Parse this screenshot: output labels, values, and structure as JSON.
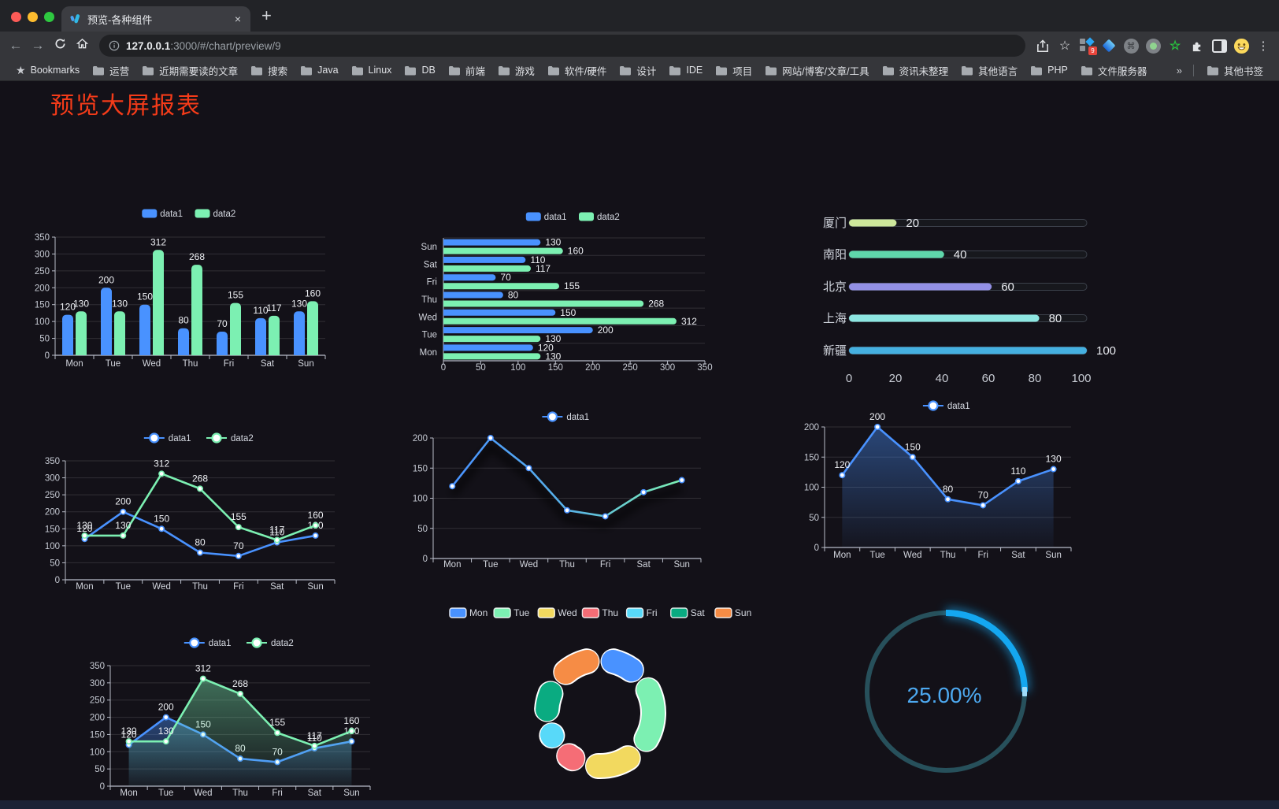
{
  "browser": {
    "tab": {
      "title": "预览-各种组件",
      "close_glyph": "×",
      "new_tab_glyph": "+",
      "favicon": "v-logo-icon"
    },
    "address": {
      "host": "127.0.0.1",
      "path": ":3000/#/chart/preview/9",
      "info_icon": "info-icon"
    },
    "toolbar_icons": [
      "back-arrow",
      "forward-arrow",
      "reload",
      "home",
      "share",
      "star",
      "extensions",
      "side-panel",
      "avatar",
      "menu"
    ],
    "extension_badge": "9",
    "bookmarks_bar": {
      "bookmarks_label": "Bookmarks",
      "folders": [
        "运营",
        "近期需要读的文章",
        "搜索",
        "Java",
        "Linux",
        "DB",
        "前端",
        "游戏",
        "软件/硬件",
        "设计",
        "IDE",
        "项目",
        "网站/博客/文章/工具",
        "资讯未整理",
        "其他语言",
        "PHP",
        "文件服务器"
      ],
      "overflow_glyph": "»",
      "other_bookmarks": "其他书签"
    }
  },
  "page": {
    "title": "预览大屏报表",
    "title_color": "#f43b19"
  },
  "chart_data": [
    {
      "id": "bar-vertical",
      "type": "bar",
      "categories": [
        "Mon",
        "Tue",
        "Wed",
        "Thu",
        "Fri",
        "Sat",
        "Sun"
      ],
      "series": [
        {
          "name": "data1",
          "color": "#4992ff",
          "values": [
            120,
            200,
            150,
            80,
            70,
            110,
            130
          ]
        },
        {
          "name": "data2",
          "color": "#7cf0b2",
          "values": [
            130,
            130,
            312,
            268,
            155,
            117,
            160
          ]
        }
      ],
      "ylim": [
        0,
        350
      ],
      "ystep": 50,
      "legend_position": "top",
      "grid": true,
      "value_labels": true
    },
    {
      "id": "bar-horizontal",
      "type": "bar-horizontal",
      "categories": [
        "Mon",
        "Tue",
        "Wed",
        "Thu",
        "Fri",
        "Sat",
        "Sun"
      ],
      "series": [
        {
          "name": "data1",
          "color": "#4992ff",
          "values": [
            120,
            200,
            150,
            80,
            70,
            110,
            130
          ]
        },
        {
          "name": "data2",
          "color": "#7cf0b2",
          "values": [
            130,
            130,
            312,
            268,
            155,
            117,
            160
          ]
        }
      ],
      "xlim": [
        0,
        350
      ],
      "xstep": 50,
      "legend_position": "top",
      "value_labels": true
    },
    {
      "id": "progress",
      "type": "bar-horizontal-progress",
      "categories": [
        "厦门",
        "南阳",
        "北京",
        "上海",
        "新疆"
      ],
      "values": [
        20,
        40,
        60,
        80,
        100
      ],
      "colors": [
        "#cde79b",
        "#5fd7ab",
        "#9390e5",
        "#8de6e1",
        "#45b0e0"
      ],
      "xlim": [
        0,
        100
      ],
      "xticks": [
        0,
        20,
        40,
        60,
        80,
        100
      ]
    },
    {
      "id": "line-two",
      "type": "line",
      "categories": [
        "Mon",
        "Tue",
        "Wed",
        "Thu",
        "Fri",
        "Sat",
        "Sun"
      ],
      "series": [
        {
          "name": "data1",
          "color": "#4992ff",
          "values": [
            120,
            200,
            150,
            80,
            70,
            110,
            130
          ]
        },
        {
          "name": "data2",
          "color": "#7cf0b2",
          "values": [
            130,
            130,
            312,
            268,
            155,
            117,
            160
          ]
        }
      ],
      "ylim": [
        0,
        350
      ],
      "ystep": 50,
      "point_labels": true,
      "legend_position": "top"
    },
    {
      "id": "line-gradient",
      "type": "line",
      "categories": [
        "Mon",
        "Tue",
        "Wed",
        "Thu",
        "Fri",
        "Sat",
        "Sun"
      ],
      "series": [
        {
          "name": "data1",
          "color": "#4992ff",
          "gradient": [
            "#4992ff",
            "#58b2e8",
            "#7cf0b2"
          ],
          "shadow": true,
          "values": [
            120,
            200,
            150,
            80,
            70,
            110,
            130
          ]
        }
      ],
      "ylim": [
        0,
        200
      ],
      "ystep": 50,
      "point_labels": false,
      "legend_position": "top"
    },
    {
      "id": "line-area",
      "type": "line",
      "categories": [
        "Mon",
        "Tue",
        "Wed",
        "Thu",
        "Fri",
        "Sat",
        "Sun"
      ],
      "series": [
        {
          "name": "data1",
          "color": "#4992ff",
          "area": true,
          "values": [
            120,
            200,
            150,
            80,
            70,
            110,
            130
          ]
        }
      ],
      "ylim": [
        0,
        200
      ],
      "ystep": 50,
      "point_labels": true,
      "legend_position": "top"
    },
    {
      "id": "area-two",
      "type": "area",
      "categories": [
        "Mon",
        "Tue",
        "Wed",
        "Thu",
        "Fri",
        "Sat",
        "Sun"
      ],
      "series": [
        {
          "name": "data1",
          "color": "#4992ff",
          "area": true,
          "values": [
            120,
            200,
            150,
            80,
            70,
            110,
            130
          ]
        },
        {
          "name": "data2",
          "color": "#7cf0b2",
          "area": true,
          "values": [
            130,
            130,
            312,
            268,
            155,
            117,
            160
          ]
        }
      ],
      "ylim": [
        0,
        350
      ],
      "ystep": 50,
      "point_labels": true,
      "legend_position": "top"
    },
    {
      "id": "donut",
      "type": "pie",
      "categories": [
        "Mon",
        "Tue",
        "Wed",
        "Thu",
        "Fri",
        "Sat",
        "Sun"
      ],
      "values": [
        120,
        200,
        150,
        80,
        70,
        110,
        130
      ],
      "colors": [
        "#4992ff",
        "#7cf0b2",
        "#f2d95f",
        "#f56d76",
        "#58d9f9",
        "#0aab81",
        "#f68c45"
      ],
      "border_color": "#ffffff",
      "legend_position": "top"
    },
    {
      "id": "gauge",
      "type": "gauge",
      "value": 25,
      "max": 100,
      "label": "25.00%",
      "color": "#14a7f0",
      "track_color": "#27505b",
      "text_color": "#4da9f0"
    }
  ]
}
